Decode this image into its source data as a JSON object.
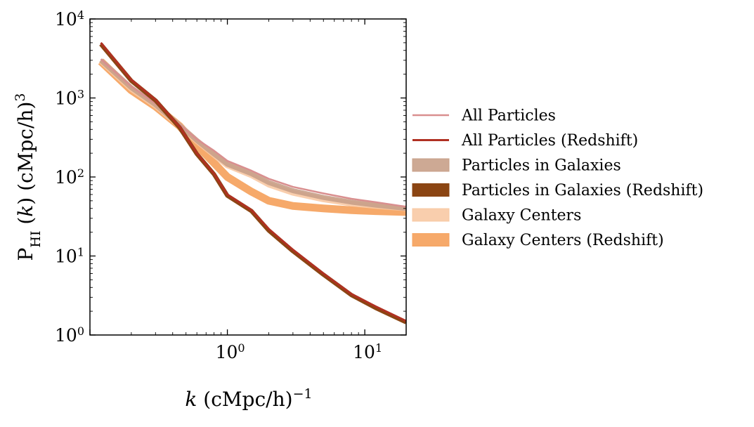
{
  "chart_data": {
    "type": "line",
    "xscale": "log",
    "yscale": "log",
    "xlim": [
      0.1,
      20
    ],
    "ylim": [
      1,
      10000
    ],
    "xlabel": {
      "var": "k",
      "unit": "(cMpc/h)",
      "exp": "−1"
    },
    "ylabel": {
      "base": "P",
      "sub": "HI",
      "var": "k",
      "unit": "(cMpc/h)",
      "exp": "3"
    },
    "x_ticks": [
      {
        "value": 1,
        "base": "10",
        "exp": "0"
      },
      {
        "value": 10,
        "base": "10",
        "exp": "1"
      }
    ],
    "y_ticks": [
      {
        "value": 1,
        "base": "10",
        "exp": "0"
      },
      {
        "value": 10,
        "base": "10",
        "exp": "1"
      },
      {
        "value": 100,
        "base": "10",
        "exp": "2"
      },
      {
        "value": 1000,
        "base": "10",
        "exp": "3"
      },
      {
        "value": 10000,
        "base": "10",
        "exp": "4"
      }
    ],
    "legend_position": "outside-right",
    "series": [
      {
        "name": "All Particles",
        "style": "line",
        "color": "#d98f8f",
        "width": 2.5,
        "opacity": 1,
        "x": [
          0.12,
          0.2,
          0.3,
          0.45,
          0.6,
          0.8,
          1.0,
          1.5,
          2,
          3,
          5,
          8,
          12,
          20
        ],
        "y": [
          3100,
          1400,
          850,
          460,
          300,
          215,
          160,
          120,
          95,
          75,
          62,
          53,
          48,
          42
        ]
      },
      {
        "name": "All Particles (Redshift)",
        "style": "line",
        "color": "#b03022",
        "width": 3,
        "opacity": 1,
        "x": [
          0.12,
          0.2,
          0.3,
          0.45,
          0.6,
          0.8,
          1.0,
          1.5,
          2,
          3,
          5,
          8,
          12,
          20
        ],
        "y": [
          5000,
          1700,
          950,
          430,
          200,
          110,
          60,
          38,
          22,
          12,
          6,
          3.3,
          2.3,
          1.5
        ]
      },
      {
        "name": "Particles in Galaxies",
        "style": "band",
        "color": "#c8a088",
        "width": 7,
        "opacity": 0.9,
        "x": [
          0.12,
          0.2,
          0.3,
          0.45,
          0.6,
          0.8,
          1.0,
          1.5,
          2,
          3,
          5,
          8,
          12,
          20
        ],
        "y": [
          3000,
          1350,
          820,
          450,
          290,
          195,
          145,
          110,
          85,
          67,
          55,
          48,
          44,
          40
        ]
      },
      {
        "name": "Particles in Galaxies (Redshift)",
        "style": "band",
        "color": "#8b4513",
        "width": 6,
        "opacity": 1,
        "x": [
          0.12,
          0.2,
          0.3,
          0.45,
          0.6,
          0.8,
          1.0,
          1.5,
          2,
          3,
          5,
          8,
          12,
          20
        ],
        "y": [
          4800,
          1650,
          930,
          420,
          195,
          108,
          58,
          37,
          21,
          11.5,
          5.8,
          3.2,
          2.2,
          1.45
        ]
      },
      {
        "name": "Galaxy Centers",
        "style": "band",
        "color": "#f8c9a4",
        "width": 8,
        "opacity": 0.9,
        "x": [
          0.12,
          0.2,
          0.3,
          0.45,
          0.6,
          0.8,
          1.0,
          1.5,
          2,
          3,
          5,
          8,
          12,
          20
        ],
        "y": [
          2950,
          1300,
          800,
          445,
          285,
          190,
          140,
          105,
          80,
          63,
          52,
          46,
          43,
          40
        ]
      },
      {
        "name": "Galaxy Centers (Redshift)",
        "style": "band",
        "color": "#f5a462",
        "width": 11,
        "opacity": 0.95,
        "x": [
          0.12,
          0.2,
          0.3,
          0.45,
          0.6,
          0.8,
          1.0,
          1.5,
          2,
          3,
          5,
          8,
          12,
          20
        ],
        "y": [
          2900,
          1250,
          780,
          440,
          250,
          150,
          100,
          65,
          50,
          43,
          40,
          38,
          37,
          36
        ]
      }
    ]
  }
}
